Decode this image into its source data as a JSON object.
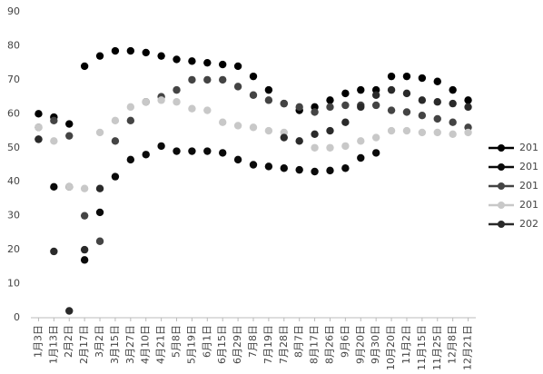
{
  "chart_data": {
    "type": "line",
    "markers_only": true,
    "categories": [
      "1月3日",
      "1月13日",
      "2月2日",
      "2月17日",
      "3月2日",
      "3月15日",
      "3月27日",
      "4月10日",
      "4月21日",
      "5月8日",
      "5月19日",
      "6月1日",
      "6月15日",
      "6月29日",
      "7月8日",
      "7月19日",
      "7月28日",
      "8月7日",
      "8月17日",
      "8月26日",
      "9月6日",
      "9月20日",
      "9月30日",
      "10月20日",
      "11月2日",
      "11月15日",
      "11月25日",
      "12月8日",
      "12月21日"
    ],
    "series": [
      {
        "name": "201",
        "color": "#000000",
        "values": [
          60,
          59,
          57,
          74,
          77,
          78.5,
          78.5,
          78,
          77,
          76,
          75.5,
          75,
          74.5,
          74,
          71,
          67,
          63,
          61,
          62,
          64,
          66,
          67,
          67,
          71,
          71,
          70.5,
          69.5,
          67,
          64
        ]
      },
      {
        "name": "201",
        "color": "#0a0a0a",
        "values": [
          52.5,
          38.5,
          38.5,
          17,
          31,
          41.5,
          46.5,
          48,
          50.5,
          49,
          49,
          49,
          48.5,
          46.5,
          45,
          44.5,
          44,
          43.5,
          43,
          43.3,
          44,
          47,
          48.5,
          null,
          null,
          null,
          null,
          null,
          null
        ]
      },
      {
        "name": "201",
        "color": "#444444",
        "values": [
          56,
          58,
          53.5,
          30,
          22.5,
          52,
          58,
          63.5,
          65,
          67,
          70,
          70,
          70,
          68,
          65.5,
          64,
          63,
          62,
          60.5,
          62,
          62.5,
          62.5,
          62.5,
          61,
          60.5,
          59.5,
          58.5,
          57.5,
          56
        ]
      },
      {
        "name": "201",
        "color": "#c8c8c8",
        "values": [
          56,
          52,
          38.5,
          38,
          54.5,
          58,
          62,
          63.5,
          64,
          63.5,
          61.5,
          61,
          57.5,
          56.5,
          56,
          55,
          54.5,
          52,
          50,
          50,
          50.5,
          52,
          53,
          55,
          55,
          54.5,
          54.5,
          54,
          54.5
        ]
      },
      {
        "name": "202",
        "color": "#2a2a2a",
        "values": [
          52.5,
          19.5,
          2,
          20,
          38,
          null,
          null,
          null,
          null,
          null,
          null,
          null,
          null,
          null,
          null,
          null,
          53,
          52,
          54,
          55,
          57.5,
          62,
          65.5,
          67,
          66,
          64,
          63.5,
          63,
          62
        ]
      }
    ],
    "ylim": [
      0,
      90
    ],
    "yticks": [
      0,
      10,
      20,
      30,
      40,
      50,
      60,
      70,
      80,
      90
    ],
    "grid": false,
    "legend": "right"
  }
}
